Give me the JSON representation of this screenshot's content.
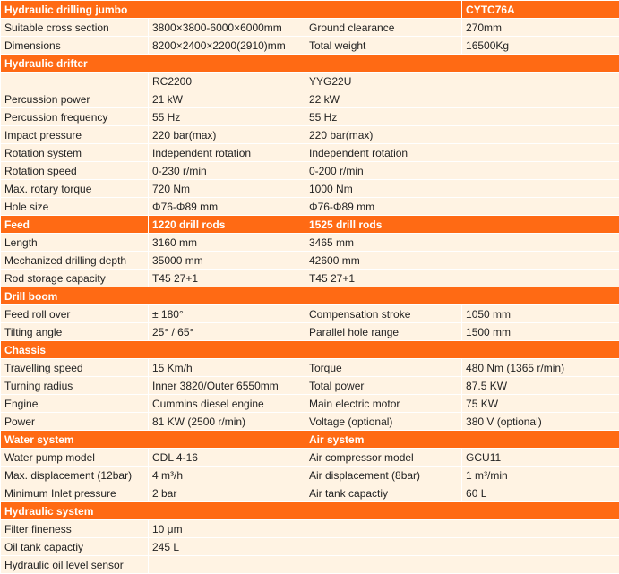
{
  "colors": {
    "header": "#ff6a14",
    "row": "#fff3e3",
    "header_text": "#ffffff"
  },
  "rows": [
    {
      "type": "head",
      "cells": [
        {
          "text": "Hydraulic drilling jumbo",
          "span": 3
        },
        {
          "text": "CYTC76A"
        }
      ]
    },
    {
      "type": "data",
      "cells": [
        {
          "text": "Suitable cross section"
        },
        {
          "text": "3800×3800-6000×6000mm"
        },
        {
          "text": "Ground clearance"
        },
        {
          "text": "270mm"
        }
      ]
    },
    {
      "type": "data",
      "cells": [
        {
          "text": "Dimensions"
        },
        {
          "text": "8200×2400×2200(2910)mm"
        },
        {
          "text": "Total weight"
        },
        {
          "text": "16500Kg"
        }
      ]
    },
    {
      "type": "head",
      "cells": [
        {
          "text": "Hydraulic drifter",
          "span": 4
        }
      ]
    },
    {
      "type": "data",
      "cells": [
        {
          "text": ""
        },
        {
          "text": "RC2200"
        },
        {
          "text": "YYG22U",
          "span": 2
        }
      ]
    },
    {
      "type": "data",
      "cells": [
        {
          "text": "Percussion power"
        },
        {
          "text": "21 kW"
        },
        {
          "text": "22 kW",
          "span": 2
        }
      ]
    },
    {
      "type": "data",
      "cells": [
        {
          "text": "Percussion frequency"
        },
        {
          "text": "55 Hz"
        },
        {
          "text": "55 Hz",
          "span": 2
        }
      ]
    },
    {
      "type": "data",
      "cells": [
        {
          "text": "Impact pressure"
        },
        {
          "text": "220  bar(max)"
        },
        {
          "text": "220  bar(max)",
          "span": 2
        }
      ]
    },
    {
      "type": "data",
      "cells": [
        {
          "text": "Rotation system"
        },
        {
          "text": "Independent rotation"
        },
        {
          "text": "Independent rotation",
          "span": 2
        }
      ]
    },
    {
      "type": "data",
      "cells": [
        {
          "text": "Rotation speed"
        },
        {
          "text": "0-230 r/min"
        },
        {
          "text": "0-200 r/min",
          "span": 2
        }
      ]
    },
    {
      "type": "data",
      "cells": [
        {
          "text": "Max. rotary torque"
        },
        {
          "text": "720 Nm"
        },
        {
          "text": "1000 Nm",
          "span": 2
        }
      ]
    },
    {
      "type": "data",
      "cells": [
        {
          "text": "Hole size"
        },
        {
          "text": "Φ76-Φ89 mm"
        },
        {
          "text": "Φ76-Φ89 mm",
          "span": 2
        }
      ]
    },
    {
      "type": "head",
      "cells": [
        {
          "text": "Feed"
        },
        {
          "text": "1220 drill rods"
        },
        {
          "text": "1525 drill rods",
          "span": 2
        }
      ]
    },
    {
      "type": "data",
      "cells": [
        {
          "text": "Length"
        },
        {
          "text": "3160 mm"
        },
        {
          "text": "3465 mm",
          "span": 2
        }
      ]
    },
    {
      "type": "data",
      "cells": [
        {
          "text": "Mechanized drilling depth"
        },
        {
          "text": "35000 mm"
        },
        {
          "text": "42600 mm",
          "span": 2
        }
      ]
    },
    {
      "type": "data",
      "cells": [
        {
          "text": "Rod storage capacity"
        },
        {
          "text": "T45  27+1"
        },
        {
          "text": "T45  27+1",
          "span": 2
        }
      ]
    },
    {
      "type": "head",
      "cells": [
        {
          "text": "Drill boom",
          "span": 4
        }
      ]
    },
    {
      "type": "data",
      "cells": [
        {
          "text": "Feed roll over"
        },
        {
          "text": "± 180°"
        },
        {
          "text": "Compensation stroke"
        },
        {
          "text": "1050 mm"
        }
      ]
    },
    {
      "type": "data",
      "cells": [
        {
          "text": "Tilting angle"
        },
        {
          "text": "25° / 65°"
        },
        {
          "text": "Parallel hole range"
        },
        {
          "text": "1500 mm"
        }
      ]
    },
    {
      "type": "head",
      "cells": [
        {
          "text": "Chassis",
          "span": 4
        }
      ]
    },
    {
      "type": "data",
      "cells": [
        {
          "text": "Travelling speed"
        },
        {
          "text": "15 Km/h"
        },
        {
          "text": "Torque"
        },
        {
          "text": "480 Nm (1365 r/min)"
        }
      ]
    },
    {
      "type": "data",
      "cells": [
        {
          "text": "Turning radius"
        },
        {
          "text": "Inner 3820/Outer 6550mm"
        },
        {
          "text": "Total power"
        },
        {
          "text": "87.5 KW"
        }
      ]
    },
    {
      "type": "data",
      "cells": [
        {
          "text": "Engine"
        },
        {
          "text": "Cummins diesel engine"
        },
        {
          "text": "Main electric motor"
        },
        {
          "text": "75 KW"
        }
      ]
    },
    {
      "type": "data",
      "cells": [
        {
          "text": "Power"
        },
        {
          "text": "81 KW (2500 r/min)"
        },
        {
          "text": "Voltage (optional)"
        },
        {
          "text": "380 V (optional)"
        }
      ]
    },
    {
      "type": "head",
      "cells": [
        {
          "text": "Water system",
          "span": 2
        },
        {
          "text": "Air system",
          "span": 2
        }
      ]
    },
    {
      "type": "data",
      "cells": [
        {
          "text": "Water pump model"
        },
        {
          "text": "CDL 4-16"
        },
        {
          "text": "Air compressor model"
        },
        {
          "text": "GCU11"
        }
      ]
    },
    {
      "type": "data",
      "cells": [
        {
          "text": "Max. displacement (12bar)"
        },
        {
          "text": "4 m³/h"
        },
        {
          "text": "Air displacement (8bar)"
        },
        {
          "text": "1 m³/min"
        }
      ]
    },
    {
      "type": "data",
      "cells": [
        {
          "text": "Minimum Inlet pressure"
        },
        {
          "text": "2 bar"
        },
        {
          "text": "Air tank capactiy"
        },
        {
          "text": "60 L"
        }
      ]
    },
    {
      "type": "head",
      "cells": [
        {
          "text": "Hydraulic system",
          "span": 4
        }
      ]
    },
    {
      "type": "data",
      "cells": [
        {
          "text": "Filter fineness"
        },
        {
          "text": "10 μm",
          "span": 3
        }
      ]
    },
    {
      "type": "data",
      "cells": [
        {
          "text": "Oil tank capactiy"
        },
        {
          "text": "245 L",
          "span": 3
        }
      ]
    },
    {
      "type": "data",
      "cells": [
        {
          "text": "Hydraulic oil level sensor"
        },
        {
          "text": "",
          "span": 3
        }
      ]
    }
  ]
}
